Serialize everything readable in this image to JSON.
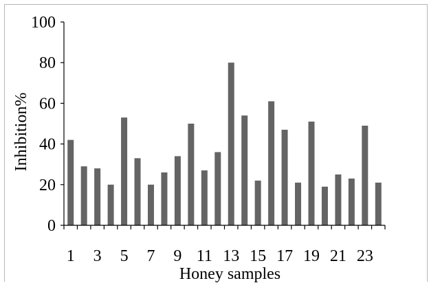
{
  "chart_data": {
    "type": "bar",
    "xlabel": "Honey samples",
    "ylabel": "Inhibition%",
    "ylim": [
      0,
      100
    ],
    "yticks": [
      0,
      20,
      40,
      60,
      80,
      100
    ],
    "categories": [
      "1",
      "2",
      "3",
      "4",
      "5",
      "6",
      "7",
      "8",
      "9",
      "10",
      "11",
      "12",
      "13",
      "14",
      "15",
      "16",
      "17",
      "18",
      "19",
      "20",
      "21",
      "22",
      "23",
      "24"
    ],
    "xtick_labels_shown": [
      "1",
      "3",
      "5",
      "7",
      "9",
      "11",
      "13",
      "15",
      "17",
      "19",
      "21",
      "23"
    ],
    "values": [
      42,
      29,
      28,
      20,
      53,
      33,
      20,
      26,
      34,
      50,
      27,
      36,
      80,
      54,
      22,
      61,
      47,
      21,
      51,
      19,
      25,
      23,
      49,
      21
    ],
    "grid": false,
    "bar_color": "#646464",
    "axis_color": "#000000"
  }
}
